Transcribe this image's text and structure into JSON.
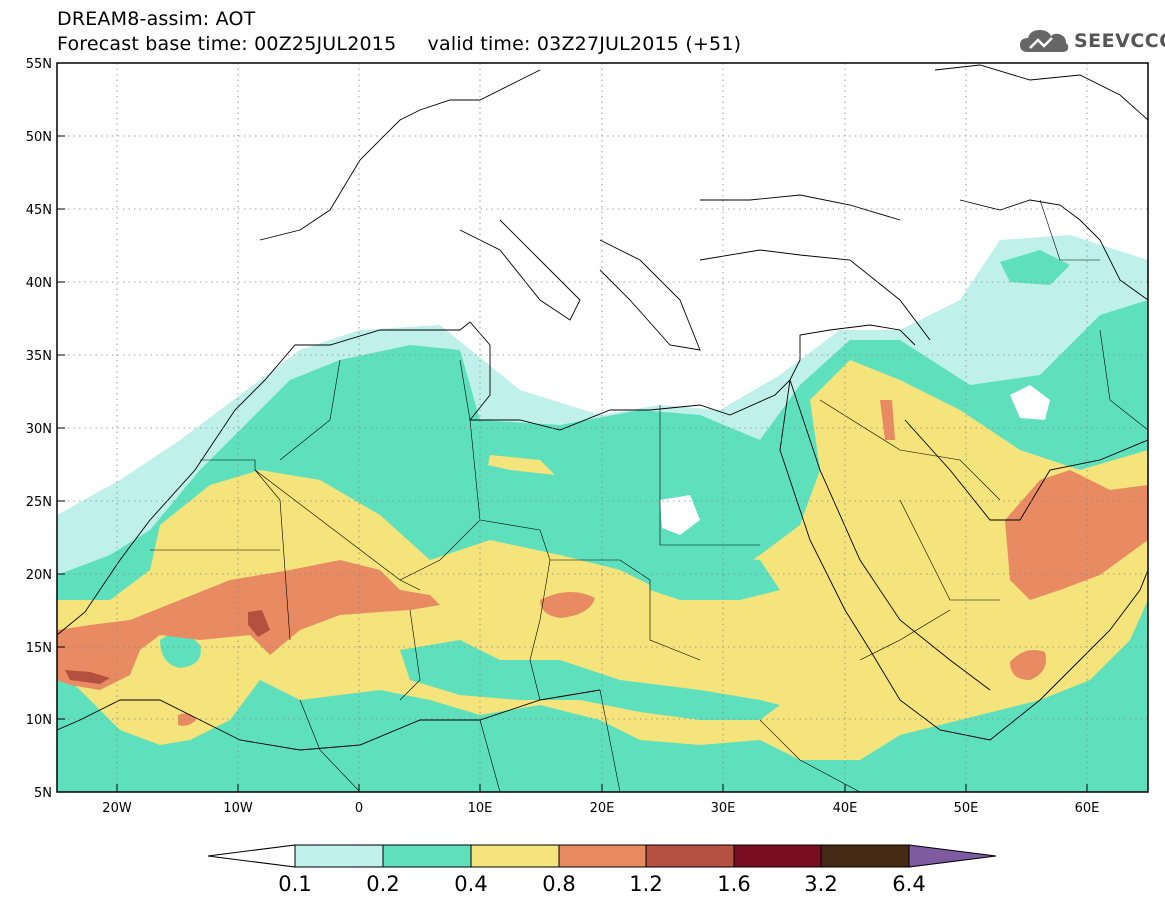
{
  "header": {
    "title_line1": "DREAM8-assim: AOT",
    "title_line2": "Forecast base time: 00Z25JUL2015     valid time: 03Z27JUL2015 (+51)",
    "logo_text": "SEEVCCC"
  },
  "map": {
    "lat_labels": [
      "55N",
      "50N",
      "45N",
      "40N",
      "35N",
      "30N",
      "25N",
      "20N",
      "15N",
      "10N",
      "5N"
    ],
    "lon_labels": [
      "20W",
      "10W",
      "0",
      "10E",
      "20E",
      "30E",
      "40E",
      "50E",
      "60E"
    ],
    "extent": {
      "lon_min": -25,
      "lon_max": 65,
      "lat_min": 5,
      "lat_max": 55
    }
  },
  "colorbar": {
    "labels": [
      "0.1",
      "0.2",
      "0.4",
      "0.8",
      "1.2",
      "1.6",
      "3.2",
      "6.4"
    ],
    "colors": [
      "#ffffff",
      "#bff0ea",
      "#5ee0bc",
      "#f5e37b",
      "#e88a62",
      "#b4503f",
      "#7a0f24",
      "#452a16",
      "#7e5aa0"
    ]
  }
}
